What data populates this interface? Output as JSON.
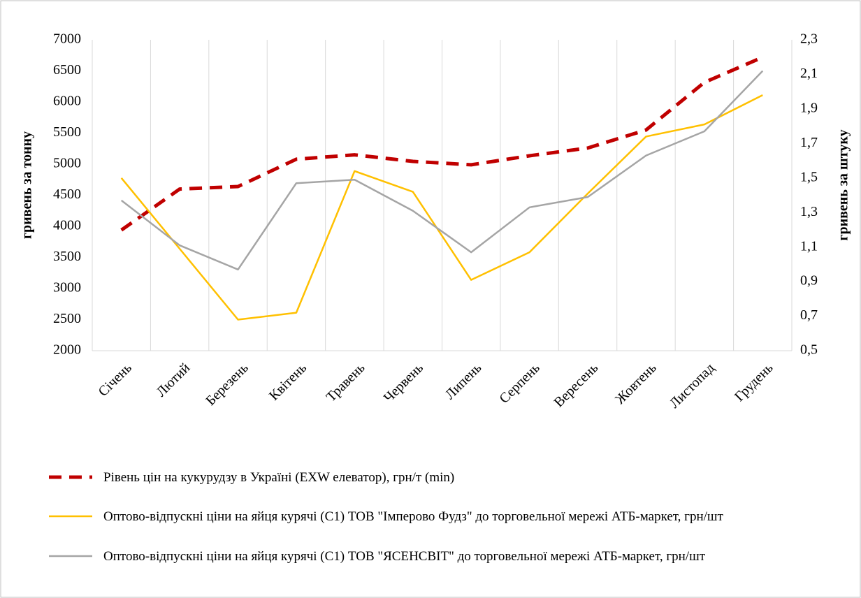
{
  "chart_data": {
    "type": "line",
    "categories": [
      "Січень",
      "Лютий",
      "Березень",
      "Квітень",
      "Травень",
      "Червень",
      "Липень",
      "Серпень",
      "Вересень",
      "Жовтень",
      "Листопад",
      "Грудень"
    ],
    "y_label": "гривень за тонну",
    "y2_label": "гривень за штуку",
    "ylim": [
      2000,
      7000
    ],
    "yticks": [
      2000,
      2500,
      3000,
      3500,
      4000,
      4500,
      5000,
      5500,
      6000,
      6500,
      7000
    ],
    "y2lim": [
      0.5,
      2.3
    ],
    "y2ticks": [
      {
        "value": 0.5,
        "label": "0,5"
      },
      {
        "value": 0.7,
        "label": "0,7"
      },
      {
        "value": 0.9,
        "label": "0,9"
      },
      {
        "value": 1.1,
        "label": "1,1"
      },
      {
        "value": 1.3,
        "label": "1,3"
      },
      {
        "value": 1.5,
        "label": "1,5"
      },
      {
        "value": 1.7,
        "label": "1,7"
      },
      {
        "value": 1.9,
        "label": "1,9"
      },
      {
        "value": 2.1,
        "label": "2,1"
      },
      {
        "value": 2.3,
        "label": "2,3"
      }
    ],
    "grid": true,
    "legend": "bottom",
    "series": [
      {
        "name": "Рівень цін на кукурудзу в Україні (EXW елеватор), грн/т (min)",
        "color": "#c00000",
        "dashed": true,
        "axis": "y",
        "values": [
          3940,
          4600,
          4640,
          5080,
          5150,
          5045,
          4990,
          5135,
          5260,
          5550,
          6315,
          6720
        ]
      },
      {
        "name": "Оптово-відпускні ціни  на яйця курячі  (С1) ТОВ \"Імперово Фудз\" до торговельної  мережі АТБ-маркет, грн/шт",
        "color": "#ffc000",
        "axis": "y2",
        "values": [
          1.5,
          1.09,
          0.68,
          0.72,
          1.54,
          1.42,
          0.91,
          1.07,
          1.41,
          1.74,
          1.81,
          1.98
        ]
      },
      {
        "name": "Оптово-відпускні ціни  на яйця курячі  (С1) ТОВ \"ЯСЕНСВІТ\" до торговельної  мережі АТБ-маркет, грн/шт",
        "color": "#a5a5a5",
        "axis": "y2",
        "values": [
          1.37,
          1.11,
          0.97,
          1.47,
          1.49,
          1.31,
          1.07,
          1.33,
          1.39,
          1.63,
          1.77,
          2.12
        ]
      }
    ]
  }
}
